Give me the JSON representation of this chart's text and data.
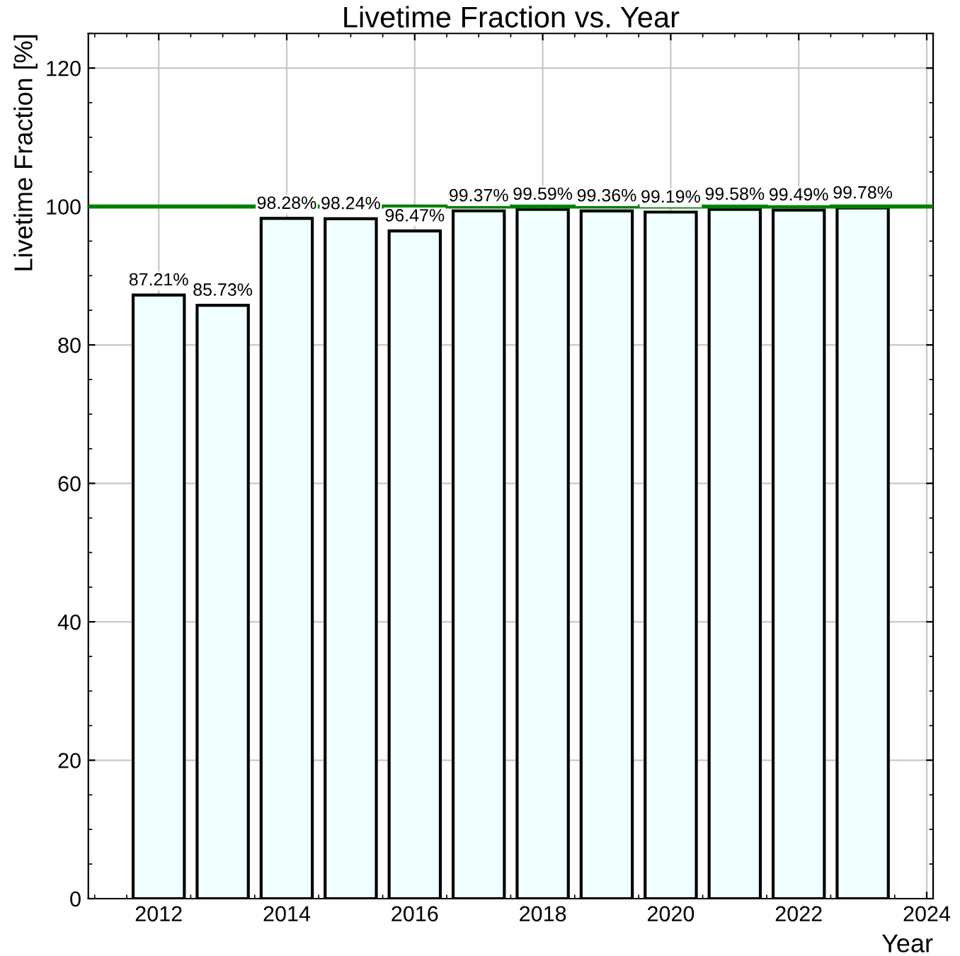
{
  "chart_data": {
    "type": "bar",
    "title": "Livetime Fraction vs. Year",
    "xlabel": "Year",
    "ylabel": "Livetime Fraction [%]",
    "x": [
      2012,
      2013,
      2014,
      2015,
      2016,
      2017,
      2018,
      2019,
      2020,
      2021,
      2022,
      2023
    ],
    "values": [
      87.21,
      85.73,
      98.28,
      98.24,
      96.47,
      99.37,
      99.59,
      99.36,
      99.19,
      99.58,
      99.49,
      99.78
    ],
    "value_labels": [
      "87.21%",
      "85.73%",
      "98.28%",
      "98.24%",
      "96.47%",
      "99.37%",
      "99.59%",
      "99.36%",
      "99.19%",
      "99.58%",
      "99.49%",
      "99.78%"
    ],
    "color": "#f0ffff",
    "xlim": [
      2010.9,
      2024.1
    ],
    "xticks": [
      2012,
      2014,
      2016,
      2018,
      2020,
      2022,
      2024
    ],
    "ylim": [
      0,
      125
    ],
    "yticks": [
      0,
      20,
      40,
      60,
      80,
      100,
      120
    ],
    "ref_lines": [
      {
        "axis": "y",
        "value": 100,
        "color": "#008000"
      }
    ],
    "grid": true
  }
}
